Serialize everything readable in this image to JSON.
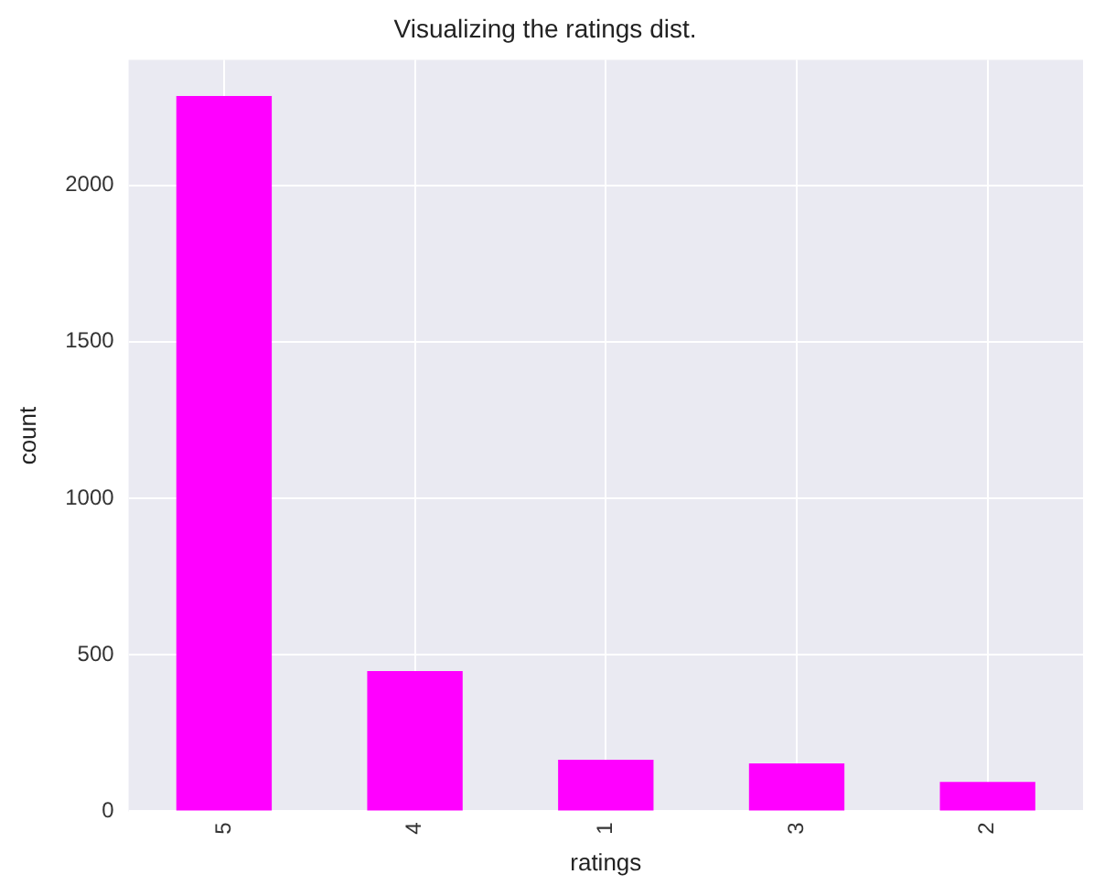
{
  "chart_data": {
    "type": "bar",
    "title": "Visualizing the ratings dist.",
    "xlabel": "ratings",
    "ylabel": "count",
    "categories": [
      "5",
      "4",
      "1",
      "3",
      "2"
    ],
    "values": [
      2285,
      448,
      165,
      153,
      94
    ],
    "color": "#ff00ff",
    "ylim": [
      0,
      2400
    ],
    "yticks": [
      0,
      500,
      1000,
      1500,
      2000
    ],
    "grid": true,
    "legend": false
  }
}
